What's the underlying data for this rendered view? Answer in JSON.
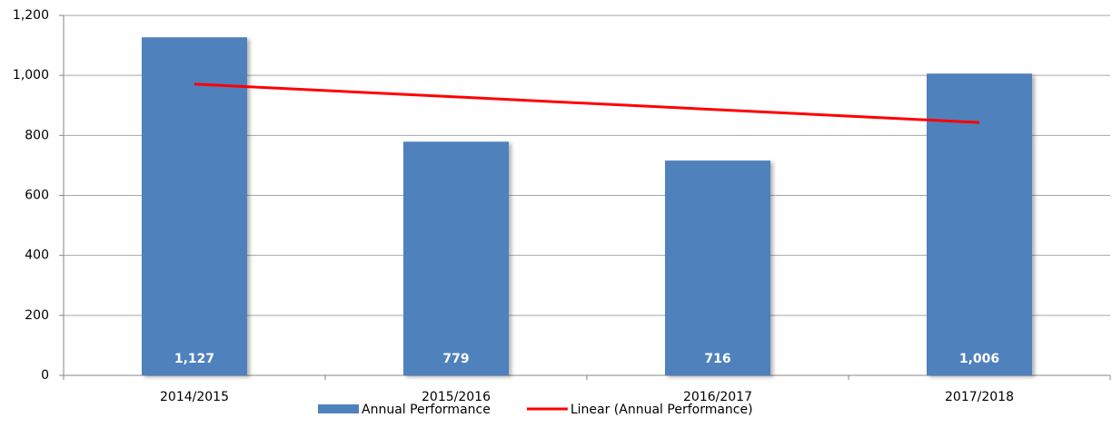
{
  "chart_data": {
    "type": "bar",
    "categories": [
      "2014/2015",
      "2015/2016",
      "2016/2017",
      "2017/2018"
    ],
    "series": [
      {
        "name": "Annual Performance",
        "type": "bar",
        "color": "#4f81bd",
        "values": [
          1127,
          779,
          716,
          1006
        ],
        "value_labels": [
          "1,127",
          "779",
          "716",
          "1,006"
        ]
      },
      {
        "name": "Linear (Annual Performance)",
        "type": "line",
        "color": "#ff0000",
        "values": [
          970.9,
          928.3,
          885.7,
          843.1
        ]
      }
    ],
    "ylim": [
      0,
      1200
    ],
    "yticks": [
      0,
      200,
      400,
      600,
      800,
      {
        "value": 1000,
        "label": "1,000"
      },
      {
        "value": 1200,
        "label": "1,200"
      }
    ],
    "grid": true
  }
}
